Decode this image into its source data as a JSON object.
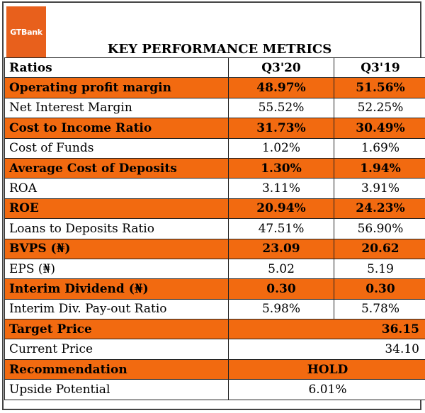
{
  "logo": {
    "text": "GTBank",
    "color": "#e8601c"
  },
  "title": "KEY PERFORMANCE METRICS",
  "colors": {
    "accent": "#f26a10",
    "row_alt": "#ffffff"
  },
  "header": {
    "label": "Ratios",
    "q1": "Q3'20",
    "q2": "Q3'19"
  },
  "rows": [
    {
      "label": "Operating profit margin",
      "q1": "48.97%",
      "q2": "51.56%"
    },
    {
      "label": "Net Interest Margin",
      "q1": "55.52%",
      "q2": "52.25%"
    },
    {
      "label": "Cost to Income Ratio",
      "q1": "31.73%",
      "q2": "30.49%"
    },
    {
      "label": "Cost of Funds",
      "q1": "1.02%",
      "q2": "1.69%"
    },
    {
      "label": "Average Cost of Deposits",
      "q1": "1.30%",
      "q2": "1.94%"
    },
    {
      "label": "ROA",
      "q1": "3.11%",
      "q2": "3.91%"
    },
    {
      "label": "ROE",
      "q1": "20.94%",
      "q2": "24.23%"
    },
    {
      "label": "Loans to Deposits Ratio",
      "q1": "47.51%",
      "q2": "56.90%"
    },
    {
      "label": "BVPS (₦)",
      "q1": "23.09",
      "q2": "20.62"
    },
    {
      "label": "EPS (₦)",
      "q1": "5.02",
      "q2": "5.19"
    },
    {
      "label": "Interim Dividend (₦)",
      "q1": "0.30",
      "q2": "0.30"
    },
    {
      "label": "Interim Div. Pay-out Ratio",
      "q1": "5.98%",
      "q2": "5.78%"
    }
  ],
  "summary": {
    "target_price": {
      "label": "Target Price",
      "value": "36.15"
    },
    "current_price": {
      "label": "Current Price",
      "value": "34.10"
    },
    "recommendation": {
      "label": "Recommendation",
      "value": "HOLD"
    },
    "upside": {
      "label": "Upside Potential",
      "value": "6.01%"
    }
  }
}
